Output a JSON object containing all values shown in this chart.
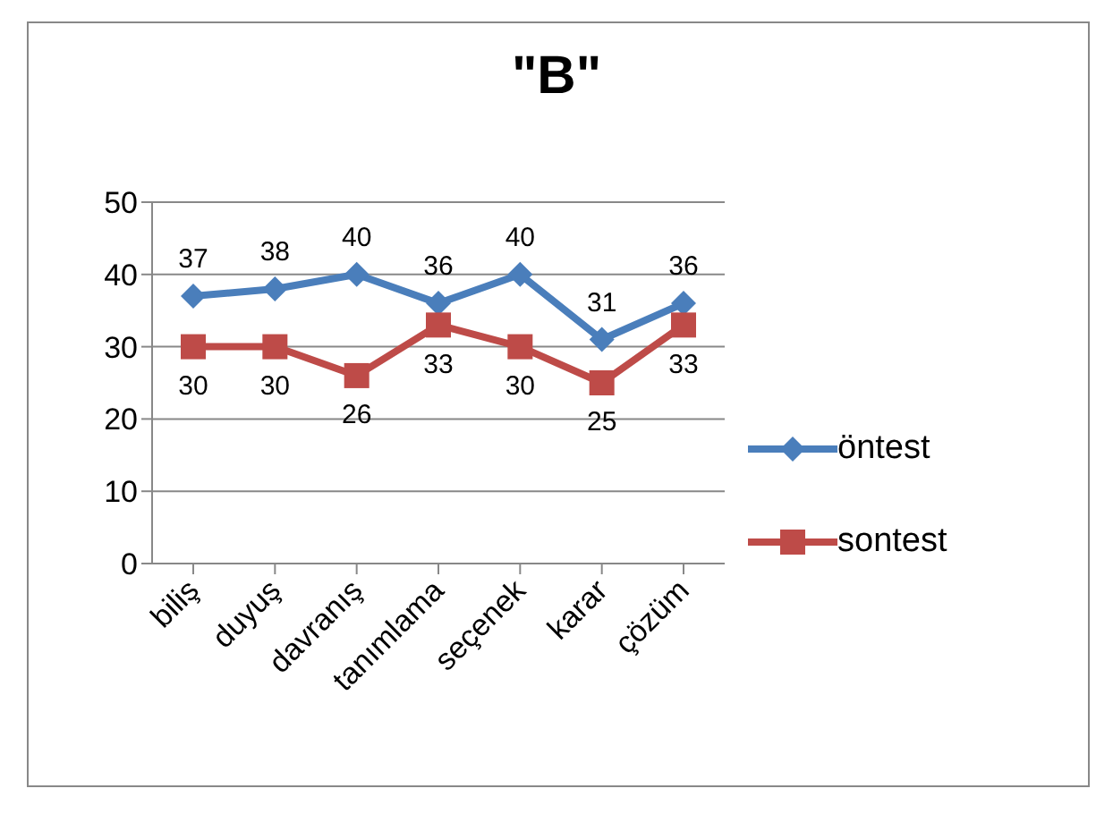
{
  "chart_data": {
    "type": "line",
    "title": "\"B\"",
    "categories": [
      "biliş",
      "duyuş",
      "davranış",
      "tanımlama",
      "seçenek",
      "karar",
      "çözüm"
    ],
    "series": [
      {
        "name": "öntest",
        "color": "#4a7ebb",
        "marker": "diamond",
        "values": [
          37,
          38,
          40,
          36,
          40,
          31,
          36
        ]
      },
      {
        "name": "sontest",
        "color": "#be4b48",
        "marker": "square",
        "values": [
          30,
          30,
          26,
          33,
          30,
          25,
          33
        ]
      }
    ],
    "ylim": [
      0,
      50
    ],
    "yticks": [
      0,
      10,
      20,
      30,
      40,
      50
    ],
    "grid": "y",
    "legend": "right",
    "data_labels": true,
    "line_style": "solid"
  }
}
